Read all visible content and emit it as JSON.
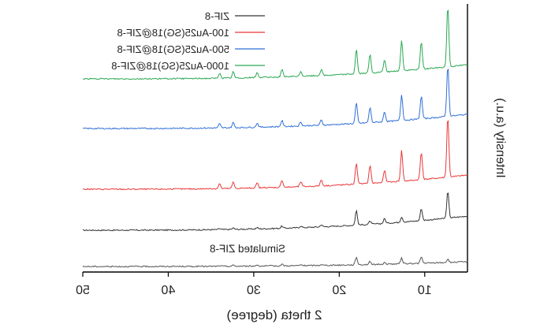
{
  "chart_data": {
    "type": "line",
    "xlabel": "2 theta (degree)",
    "ylabel": "Intensity (a.u.)",
    "xlim": [
      50,
      5
    ],
    "x_ticks": [
      50,
      40,
      30,
      20,
      10
    ],
    "x_axis_reversed": true,
    "grid": false,
    "legend_position": "top-right",
    "image_mirrored_horizontally": true,
    "annotation": "Simulated ZIF-8",
    "peaks_2theta": [
      7.3,
      10.4,
      12.7,
      14.7,
      16.4,
      18.0,
      22.1,
      24.5,
      26.7,
      29.6,
      32.4,
      34.0
    ],
    "series": [
      {
        "name": "ZIF-8",
        "color": "#333333",
        "relative_intensities": [
          1.0,
          0.45,
          0.2,
          0.18,
          0.12,
          0.55,
          0.08,
          0.06,
          0.08,
          0.05,
          0.05,
          0.04
        ]
      },
      {
        "name": "100-Au25(SG)18@ZIF-8",
        "color": "#e8393a",
        "relative_intensities": [
          1.0,
          0.45,
          0.5,
          0.2,
          0.3,
          0.35,
          0.1,
          0.08,
          0.12,
          0.08,
          0.1,
          0.08
        ]
      },
      {
        "name": "500-Au25(SG)18@ZIF-8",
        "color": "#2f6fd6",
        "relative_intensities": [
          1.0,
          0.45,
          0.5,
          0.2,
          0.3,
          0.4,
          0.1,
          0.08,
          0.12,
          0.08,
          0.1,
          0.08
        ]
      },
      {
        "name": "1000-Au25(SG)18@ZIF-8",
        "color": "#2aa852",
        "relative_intensities": [
          1.0,
          0.45,
          0.5,
          0.2,
          0.3,
          0.4,
          0.1,
          0.08,
          0.12,
          0.08,
          0.1,
          0.08
        ]
      },
      {
        "name": "Simulated ZIF-8",
        "color": "#555555",
        "relative_intensities": [
          0.1,
          0.2,
          0.18,
          0.05,
          0.1,
          0.25,
          0.03,
          0.03,
          0.05,
          0.04,
          0.03,
          0.02
        ]
      }
    ]
  }
}
